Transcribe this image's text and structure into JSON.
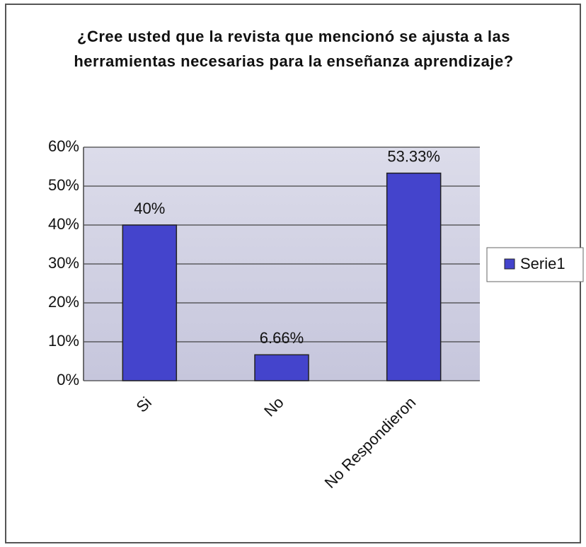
{
  "chart_data": {
    "type": "bar",
    "title": "¿Cree usted que la revista que mencionó se ajusta a las herramientas necesarias para la enseñanza aprendizaje?",
    "categories": [
      "Si",
      "No",
      "No Respondieron"
    ],
    "series": [
      {
        "name": "Serie1",
        "color": "#4444cc",
        "values": [
          40,
          6.66,
          53.33
        ],
        "value_labels": [
          "40%",
          "6.66%",
          "53.33%"
        ]
      }
    ],
    "ylim": [
      0,
      60
    ],
    "yticks": [
      {
        "value": 0,
        "label": "0%"
      },
      {
        "value": 10,
        "label": "10%"
      },
      {
        "value": 20,
        "label": "20%"
      },
      {
        "value": 30,
        "label": "30%"
      },
      {
        "value": 40,
        "label": "40%"
      },
      {
        "value": 50,
        "label": "50%"
      },
      {
        "value": 60,
        "label": "60%"
      }
    ],
    "grid": true,
    "legend": "right"
  }
}
